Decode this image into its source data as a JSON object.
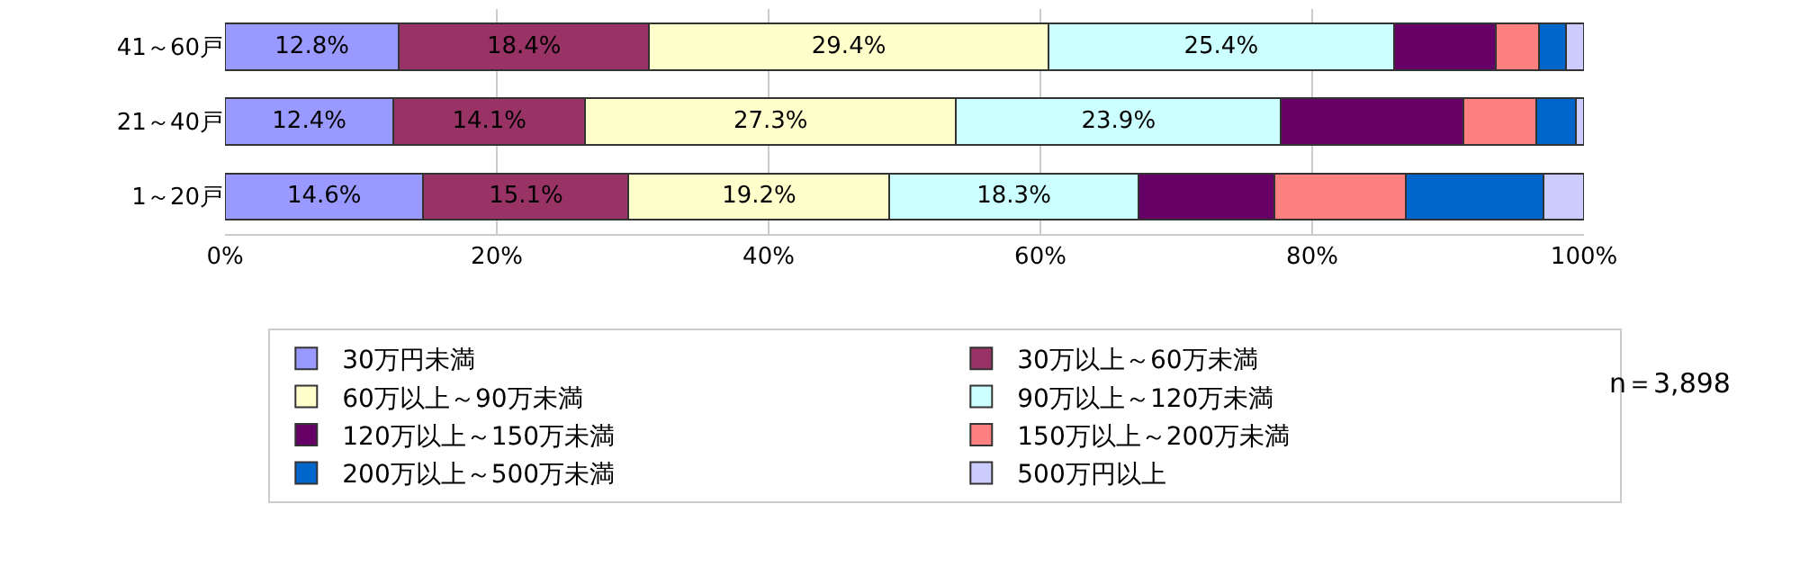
{
  "chart_data": {
    "type": "bar",
    "orientation": "horizontal",
    "stacked": true,
    "categories": [
      "41～60戸",
      "21～40戸",
      "1～20戸"
    ],
    "xlim": [
      0,
      100
    ],
    "xticks": [
      {
        "value": 0,
        "label": "0%"
      },
      {
        "value": 20,
        "label": "20%"
      },
      {
        "value": 40,
        "label": "40%"
      },
      {
        "value": 60,
        "label": "60%"
      },
      {
        "value": 80,
        "label": "80%"
      },
      {
        "value": 100,
        "label": "100%"
      }
    ],
    "grid": "x",
    "legend": "bottom",
    "series": [
      {
        "name": "30万円未満",
        "color": "#9999ff",
        "values": [
          12.8,
          12.4,
          14.6
        ],
        "value_labels": [
          "12.8%",
          "12.4%",
          "14.6%"
        ]
      },
      {
        "name": "30万以上～60万未満",
        "color": "#993366",
        "values": [
          18.4,
          14.1,
          15.1
        ],
        "value_labels": [
          "18.4%",
          "14.1%",
          "15.1%"
        ]
      },
      {
        "name": "60万以上～90万未満",
        "color": "#ffffcc",
        "values": [
          29.4,
          27.3,
          19.2
        ],
        "value_labels": [
          "29.4%",
          "27.3%",
          "19.2%"
        ]
      },
      {
        "name": "90万以上～120万未満",
        "color": "#ccffff",
        "values": [
          25.4,
          23.9,
          18.3
        ],
        "value_labels": [
          "25.4%",
          "23.9%",
          "18.3%"
        ]
      },
      {
        "name": "120万以上～150万未満",
        "color": "#660066",
        "values": [
          7.5,
          13.4,
          10.0
        ]
      },
      {
        "name": "150万以上～200万未満",
        "color": "#ff8080",
        "values": [
          3.2,
          5.4,
          9.7
        ]
      },
      {
        "name": "200万以上～500万未満",
        "color": "#0066cc",
        "values": [
          2.0,
          2.9,
          10.1
        ]
      },
      {
        "name": "500万円以上",
        "color": "#ccccff",
        "values": [
          1.3,
          0.6,
          3.0
        ]
      }
    ],
    "annotations": [
      "n＝3,898"
    ]
  }
}
